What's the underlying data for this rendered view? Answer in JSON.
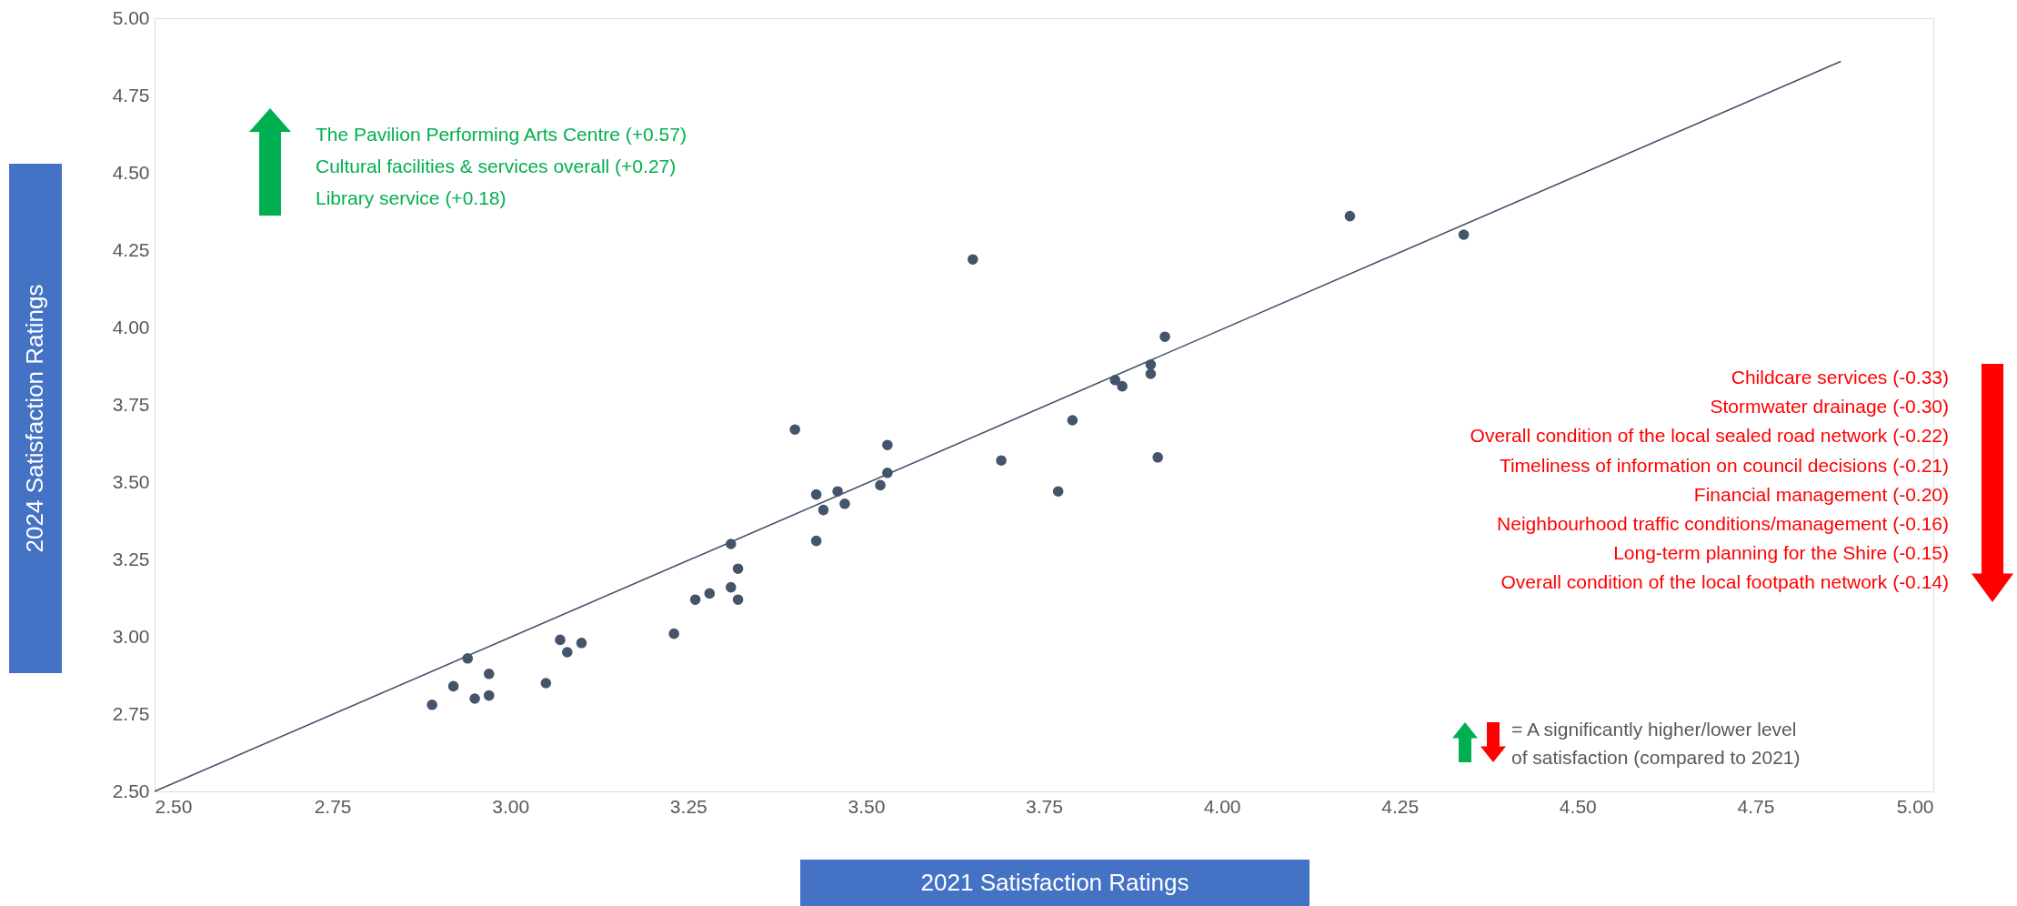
{
  "chart_data": {
    "type": "scatter",
    "xlabel": "2021 Satisfaction Ratings",
    "ylabel": "2024 Satisfaction Ratings",
    "annotations": [
      "The Pavilion Performing Arts Centre (+0.57)",
      "Cultural facilities & services overall (+0.27)",
      "Library service (+0.18)",
      "Childcare services (-0.33)",
      "Stormwater drainage (-0.30)",
      "Overall condition of the local sealed road network (-0.22)",
      "Timeliness of information on council decisions (-0.21)",
      "Financial management (-0.20)",
      "Neighbourhood traffic conditions/management (-0.16)",
      "Long-term planning for the Shire (-0.15)",
      "Overall condition of the local footpath network (-0.14)",
      "= A significantly higher/lower level",
      "of satisfaction (compared to 2021)"
    ],
    "series": [
      {
        "type": "scatter",
        "color": "#44546a",
        "x": [
          2.89,
          2.92,
          2.94,
          2.95,
          2.97,
          2.97,
          3.05,
          3.07,
          3.08,
          3.1,
          3.23,
          3.26,
          3.28,
          3.31,
          3.31,
          3.32,
          3.32,
          3.4,
          3.43,
          3.43,
          3.44,
          3.46,
          3.47,
          3.52,
          3.53,
          3.53,
          3.65,
          3.69,
          3.77,
          3.79,
          3.85,
          3.86,
          3.9,
          3.9,
          3.91,
          3.92,
          4.18,
          4.34
        ],
        "values": [
          2.78,
          2.84,
          2.93,
          2.8,
          2.81,
          2.88,
          2.85,
          2.99,
          2.95,
          2.98,
          3.01,
          3.12,
          3.14,
          3.16,
          3.3,
          3.22,
          3.12,
          3.67,
          3.46,
          3.31,
          3.41,
          3.47,
          3.43,
          3.49,
          3.62,
          3.53,
          4.22,
          3.57,
          3.47,
          3.7,
          3.83,
          3.81,
          3.85,
          3.88,
          3.58,
          3.97,
          4.36,
          4.3
        ]
      },
      {
        "type": "line",
        "marker": "none",
        "color": "#44546a",
        "x": [
          2.5,
          4.87
        ],
        "values": [
          2.5,
          4.86
        ]
      }
    ],
    "marker": "circle",
    "grid": false,
    "xlim": [
      2.5,
      5.0
    ],
    "ylim": [
      2.5,
      5.0
    ],
    "xticks": [
      {
        "value": 2.5,
        "label": "2.50"
      },
      2.75,
      {
        "value": 3.0,
        "label": "3.00"
      },
      3.25,
      {
        "value": 3.5,
        "label": "3.50"
      },
      3.75,
      {
        "value": 4.0,
        "label": "4.00"
      },
      4.25,
      {
        "value": 4.5,
        "label": "4.50"
      },
      4.75,
      {
        "value": 5.0,
        "label": "5.00"
      }
    ],
    "yticks": [
      {
        "value": 2.5,
        "label": "2.50"
      },
      2.75,
      {
        "value": 3.0,
        "label": "3.00"
      },
      3.25,
      {
        "value": 3.5,
        "label": "3.50"
      },
      3.75,
      {
        "value": 4.0,
        "label": "4.00"
      },
      4.25,
      {
        "value": 4.5,
        "label": "4.50"
      },
      4.75,
      {
        "value": 5.0,
        "label": "5.00"
      }
    ]
  }
}
